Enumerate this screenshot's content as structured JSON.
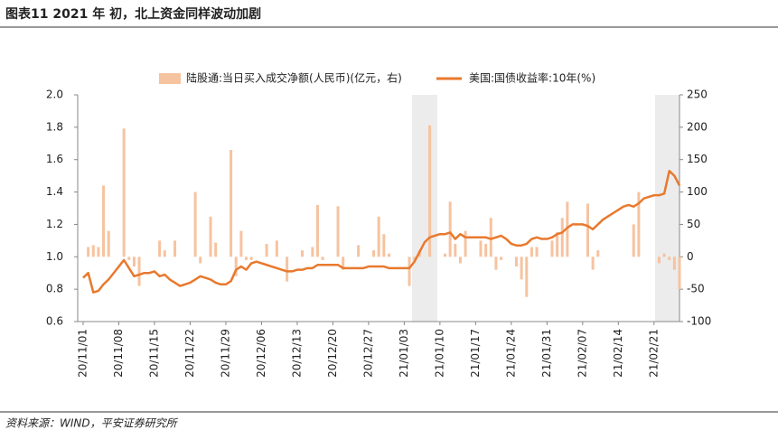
{
  "header": {
    "title": "图表11    2021 年 初，北上资金同样波动加剧"
  },
  "footer": {
    "source": "资料来源：WIND，平安证券研究所"
  },
  "chart_data": {
    "type": "combo",
    "categories": [
      "20/11/01",
      null,
      null,
      null,
      null,
      null,
      null,
      "20/11/08",
      null,
      null,
      null,
      null,
      null,
      null,
      "20/11/15",
      null,
      null,
      null,
      null,
      null,
      null,
      "20/11/22",
      null,
      null,
      null,
      null,
      null,
      null,
      "20/11/29",
      null,
      null,
      null,
      null,
      null,
      null,
      "20/12/06",
      null,
      null,
      null,
      null,
      null,
      null,
      "20/12/13",
      null,
      null,
      null,
      null,
      null,
      null,
      "20/12/20",
      null,
      null,
      null,
      null,
      null,
      null,
      "20/12/27",
      null,
      null,
      null,
      null,
      null,
      null,
      "21/01/03",
      null,
      null,
      null,
      null,
      null,
      null,
      "21/01/10",
      null,
      null,
      null,
      null,
      null,
      null,
      "21/01/17",
      null,
      null,
      null,
      null,
      null,
      null,
      "21/01/24",
      null,
      null,
      null,
      null,
      null,
      null,
      "21/01/31",
      null,
      null,
      null,
      null,
      null,
      null,
      "21/02/07",
      null,
      null,
      null,
      null,
      null,
      null,
      "21/02/14",
      null,
      null,
      null,
      null,
      null,
      null,
      "21/02/21",
      null,
      null,
      null,
      null,
      null
    ],
    "series": [
      {
        "name": "陆股通:当日买入成交净额(人民币)(亿元，右)",
        "type": "bar",
        "axis": "y2",
        "color": "#f6c3a0",
        "values": [
          null,
          15,
          18,
          15,
          110,
          40,
          null,
          null,
          198,
          -5,
          -15,
          -45,
          null,
          null,
          null,
          25,
          10,
          null,
          25,
          null,
          null,
          null,
          100,
          -10,
          null,
          62,
          22,
          null,
          null,
          165,
          -30,
          40,
          -5,
          -5,
          null,
          null,
          20,
          null,
          25,
          null,
          -38,
          null,
          null,
          10,
          null,
          15,
          80,
          -5,
          null,
          null,
          78,
          -20,
          null,
          null,
          18,
          null,
          null,
          10,
          62,
          35,
          5,
          null,
          null,
          null,
          -45,
          -5,
          10,
          null,
          203,
          null,
          null,
          5,
          85,
          20,
          -10,
          40,
          null,
          null,
          25,
          20,
          60,
          -20,
          -5,
          null,
          null,
          -15,
          -35,
          -62,
          15,
          15,
          null,
          null,
          25,
          38,
          60,
          85,
          null,
          null,
          null,
          82,
          -20,
          10,
          null,
          null,
          null,
          null,
          null,
          null,
          50,
          100,
          null,
          null,
          null,
          -10,
          5,
          -5,
          -20,
          -50
        ]
      },
      {
        "name": "美国:国债收益率:10年(%)",
        "type": "line",
        "axis": "y",
        "color": "#e8792e",
        "values": [
          0.87,
          0.9,
          0.78,
          0.79,
          0.83,
          0.86,
          0.9,
          0.94,
          0.98,
          0.93,
          0.88,
          0.89,
          0.9,
          0.9,
          0.91,
          0.88,
          0.89,
          0.86,
          0.84,
          0.82,
          0.83,
          0.84,
          0.86,
          0.88,
          0.87,
          0.86,
          0.84,
          0.83,
          0.83,
          0.85,
          0.92,
          0.94,
          0.92,
          0.96,
          0.97,
          0.96,
          0.95,
          0.94,
          0.93,
          0.92,
          0.91,
          0.91,
          0.92,
          0.92,
          0.93,
          0.93,
          0.95,
          0.95,
          0.95,
          0.95,
          0.95,
          0.93,
          0.93,
          0.93,
          0.93,
          0.93,
          0.94,
          0.94,
          0.94,
          0.94,
          0.93,
          0.93,
          0.93,
          0.93,
          0.93,
          0.97,
          1.03,
          1.09,
          1.12,
          1.13,
          1.14,
          1.14,
          1.15,
          1.11,
          1.14,
          1.12,
          1.12,
          1.12,
          1.12,
          1.12,
          1.11,
          1.12,
          1.13,
          1.11,
          1.08,
          1.07,
          1.07,
          1.08,
          1.11,
          1.12,
          1.11,
          1.11,
          1.12,
          1.14,
          1.15,
          1.18,
          1.2,
          1.2,
          1.2,
          1.19,
          1.17,
          1.2,
          1.23,
          1.25,
          1.27,
          1.29,
          1.31,
          1.32,
          1.31,
          1.33,
          1.36,
          1.37,
          1.38,
          1.38,
          1.39,
          1.53,
          1.5,
          1.44
        ]
      }
    ],
    "ylim": [
      0.6,
      2.0
    ],
    "yticks": [
      0.6,
      0.8,
      {
        "value": 1.0,
        "label": "1.0"
      },
      1.2,
      1.4,
      1.6,
      1.8,
      {
        "value": 2.0,
        "label": "2.0"
      }
    ],
    "y2lim": [
      -100,
      250
    ],
    "y2ticks": [
      -100,
      -50,
      0,
      50,
      100,
      150,
      200,
      250
    ],
    "grid": false
  }
}
